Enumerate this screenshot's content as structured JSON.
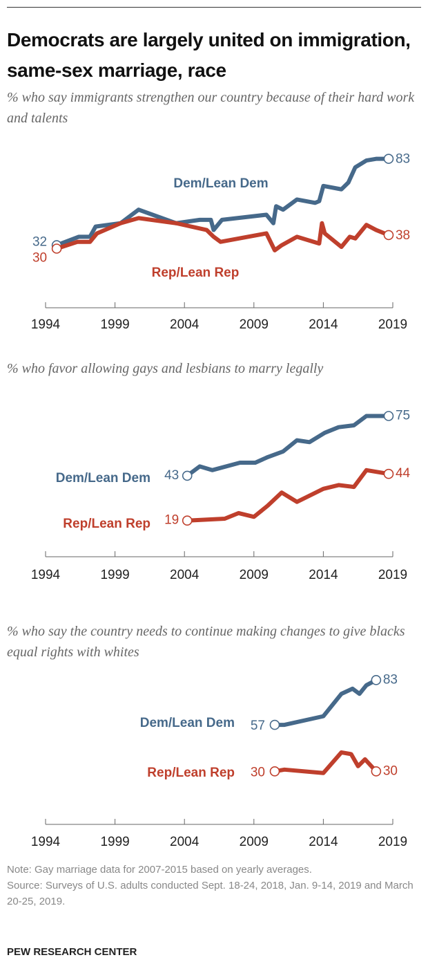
{
  "title": "Democrats are largely united on immigration, same-sex marriage, race",
  "chart_data": [
    {
      "type": "line",
      "subtitle": "% who say immigrants strengthen our country because of their hard work and talents",
      "xlim": [
        1994,
        2019
      ],
      "xticks": [
        1994,
        1999,
        2004,
        2009,
        2014,
        2019
      ],
      "ylim": [
        0,
        100
      ],
      "series": [
        {
          "name": "Dem/Lean Dem",
          "color": "#46698a",
          "x": [
            1994.8,
            1996.4,
            1997.2,
            1997.6,
            1999.4,
            2000.7,
            2003.4,
            2005.1,
            2005.9,
            2006.1,
            2006.7,
            2009.9,
            2010.4,
            2010.6,
            2011.1,
            2012.1,
            2013.4,
            2013.7,
            2014,
            2015.3,
            2015.8,
            2016.3,
            2017.1,
            2017.8,
            2018.7
          ],
          "values": [
            32,
            37,
            37,
            43,
            45,
            53,
            45,
            47,
            47,
            41,
            47,
            50,
            45,
            55,
            53,
            59,
            57,
            58,
            67,
            65,
            69,
            78,
            82,
            83,
            83
          ]
        },
        {
          "name": "Rep/Lean Rep",
          "color": "#bf3f2c",
          "x": [
            1994.8,
            1996.3,
            1997.2,
            1997.7,
            1999.4,
            2000.7,
            2003.4,
            2005.6,
            2006.1,
            2006.6,
            2009.9,
            2010.5,
            2011,
            2012.1,
            2013.7,
            2013.9,
            2014.1,
            2015.3,
            2015.9,
            2016.3,
            2017.1,
            2017.8,
            2018.7
          ],
          "values": [
            30,
            34,
            34,
            39,
            45,
            48,
            45,
            41,
            37,
            34,
            39,
            29,
            32,
            37,
            33,
            45,
            39,
            31,
            37,
            36,
            44,
            41,
            38
          ]
        }
      ]
    },
    {
      "type": "line",
      "subtitle": "% who favor allowing gays and lesbians to marry legally",
      "xlim": [
        1994,
        2019
      ],
      "xticks": [
        1994,
        1999,
        2004,
        2009,
        2014,
        2019
      ],
      "ylim": [
        0,
        100
      ],
      "series": [
        {
          "name": "Dem/Lean Dem",
          "color": "#46698a",
          "x": [
            2004.2,
            2005.1,
            2006,
            2008,
            2009.1,
            2010,
            2011.1,
            2012.1,
            2013,
            2014.1,
            2015.1,
            2016.2,
            2017.1,
            2018.7
          ],
          "values": [
            43,
            48,
            46,
            50,
            50,
            53,
            56,
            62,
            61,
            66,
            69,
            70,
            75,
            75
          ]
        },
        {
          "name": "Rep/Lean Rep",
          "color": "#bf3f2c",
          "x": [
            2004.2,
            2006.9,
            2007.9,
            2009,
            2010,
            2011,
            2012.1,
            2014,
            2015.1,
            2016.2,
            2017.1,
            2018.7
          ],
          "values": [
            19,
            20,
            23,
            21,
            27,
            34,
            29,
            36,
            38,
            37,
            46,
            44
          ]
        }
      ]
    },
    {
      "type": "line",
      "subtitle": "% who say the country needs to continue making changes to give blacks equal rights with whites",
      "xlim": [
        1994,
        2019
      ],
      "xticks": [
        1994,
        1999,
        2004,
        2009,
        2014,
        2019
      ],
      "ylim": [
        0,
        100
      ],
      "series": [
        {
          "name": "Dem/Lean Dem",
          "color": "#46698a",
          "x": [
            2010.5,
            2011.2,
            2014,
            2015.3,
            2016.1,
            2016.6,
            2017.1,
            2017.8
          ],
          "values": [
            57,
            57,
            62,
            75,
            78,
            75,
            80,
            83
          ]
        },
        {
          "name": "Rep/Lean Rep",
          "color": "#bf3f2c",
          "x": [
            2010.5,
            2011.2,
            2014,
            2015.3,
            2016,
            2016.5,
            2017,
            2017.8
          ],
          "values": [
            30,
            31,
            29,
            41,
            40,
            33,
            37,
            30
          ]
        }
      ]
    }
  ],
  "note": "Note: Gay marriage data for 2007-2015 based on yearly averages.",
  "source": "Source: Surveys of U.S. adults conducted Sept. 18-24, 2018, Jan. 9-14, 2019 and March 20-25, 2019.",
  "footer": "PEW RESEARCH CENTER"
}
